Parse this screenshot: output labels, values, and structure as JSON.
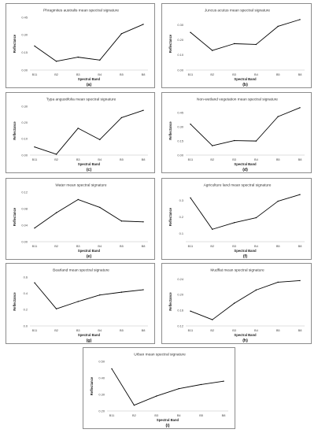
{
  "figure": {
    "line_color": "#000000",
    "axis_color": "#bfbfbf"
  },
  "chart_data": [
    {
      "id": "a",
      "type": "line",
      "title": "Phragmites australis mean spectral signature",
      "panel_label": "(a)",
      "xlabel": "Spectral Band",
      "ylabel": "Reflectance",
      "categories": [
        "B11",
        "B2",
        "B3",
        "B4",
        "B5",
        "B8"
      ],
      "values": [
        0.205,
        0.075,
        0.11,
        0.085,
        0.31,
        0.39
      ],
      "yticks": [
        "0.00",
        "0.15",
        "0.30",
        "0.45"
      ],
      "ylim": [
        0,
        0.45
      ],
      "grid": false
    },
    {
      "id": "b",
      "type": "line",
      "title": "Juncus acutus mean spectral signature",
      "panel_label": "(b)",
      "xlabel": "Spectral Band",
      "ylabel": "Reflectance",
      "categories": [
        "B11",
        "B2",
        "B3",
        "B4",
        "B5",
        "B8"
      ],
      "values": [
        0.25,
        0.13,
        0.175,
        0.17,
        0.29,
        0.335
      ],
      "yticks": [
        "0.00",
        "0.10",
        "0.20",
        "0.30"
      ],
      "ylim": [
        0,
        0.35
      ],
      "grid": false
    },
    {
      "id": "c",
      "type": "line",
      "title": "Typa angustifolia mean spectral signature",
      "panel_label": "(c)",
      "xlabel": "Spectral Band",
      "ylabel": "Reflectance",
      "categories": [
        "B11",
        "B2",
        "B3",
        "B4",
        "B5",
        "B8"
      ],
      "values": [
        0.05,
        0.005,
        0.165,
        0.095,
        0.23,
        0.275
      ],
      "yticks": [
        "0.00",
        "0.10",
        "0.20",
        "0.30"
      ],
      "ylim": [
        0,
        0.3
      ],
      "grid": false
    },
    {
      "id": "d",
      "type": "line",
      "title": "Non-wetland vegetation mean spectral signature",
      "panel_label": "(d)",
      "xlabel": "Spectral Band",
      "ylabel": "Reflectance",
      "categories": [
        "B11",
        "B2",
        "B3",
        "B4",
        "B5",
        "B8"
      ],
      "values": [
        0.33,
        0.1,
        0.155,
        0.15,
        0.41,
        0.505
      ],
      "yticks": [
        "0.00",
        "0.15",
        "0.30",
        "0.45"
      ],
      "ylim": [
        0,
        0.52
      ],
      "grid": false
    },
    {
      "id": "e",
      "type": "line",
      "title": "Water mean spectral signature",
      "panel_label": "(e)",
      "xlabel": "Spectral Band",
      "ylabel": "Reflectance",
      "categories": [
        "B11",
        "B2",
        "B3",
        "B4",
        "B5",
        "B8"
      ],
      "values": [
        0.033,
        0.07,
        0.102,
        0.083,
        0.05,
        0.048
      ],
      "yticks": [
        "0.00",
        "0.04",
        "0.08",
        "0.12"
      ],
      "ylim": [
        0,
        0.12
      ],
      "grid": false
    },
    {
      "id": "f",
      "type": "line",
      "title": "Agriculture land mean spectral signature",
      "panel_label": "(f)",
      "xlabel": "Spectral Band",
      "ylabel": "Reflectance",
      "categories": [
        "B11",
        "B2",
        "B3",
        "B4",
        "B5",
        "B8"
      ],
      "values": [
        0.315,
        0.125,
        0.165,
        0.195,
        0.295,
        0.335
      ],
      "yticks": [
        "0.1",
        "0.2",
        "0.3"
      ],
      "ylim": [
        0.05,
        0.35
      ],
      "grid": false
    },
    {
      "id": "g",
      "type": "line",
      "title": "Bearland mean spectral signature",
      "panel_label": "(g)",
      "xlabel": "Spectral Band",
      "ylabel": "Reflectance",
      "categories": [
        "B11",
        "B2",
        "B3",
        "B4",
        "B5",
        "B8"
      ],
      "values": [
        0.53,
        0.21,
        0.3,
        0.38,
        0.415,
        0.445
      ],
      "yticks": [
        "0.0",
        "0.2",
        "0.4",
        "0.6"
      ],
      "ylim": [
        0,
        0.6
      ],
      "grid": false
    },
    {
      "id": "h",
      "type": "line",
      "title": "Mudflat mean spectral signature",
      "panel_label": "(h)",
      "xlabel": "Spectral Band",
      "ylabel": "Reflectance",
      "categories": [
        "B11",
        "B2",
        "B3",
        "B4",
        "B5",
        "B8"
      ],
      "values": [
        0.158,
        0.136,
        0.178,
        0.212,
        0.232,
        0.236
      ],
      "yticks": [
        "0.12",
        "0.16",
        "0.20",
        "0.24"
      ],
      "ylim": [
        0.12,
        0.245
      ],
      "grid": false
    },
    {
      "id": "i",
      "type": "line",
      "title": "Urban mean spectral signature",
      "panel_label": "(i)",
      "xlabel": "Spectral Band",
      "ylabel": "Reflectance",
      "categories": [
        "B11",
        "B2",
        "B3",
        "B4",
        "B5",
        "B8"
      ],
      "values": [
        0.455,
        0.235,
        0.29,
        0.335,
        0.36,
        0.38
      ],
      "yticks": [
        "0.20",
        "0.30",
        "0.40",
        "0.50"
      ],
      "ylim": [
        0.2,
        0.5
      ],
      "grid": false
    }
  ]
}
